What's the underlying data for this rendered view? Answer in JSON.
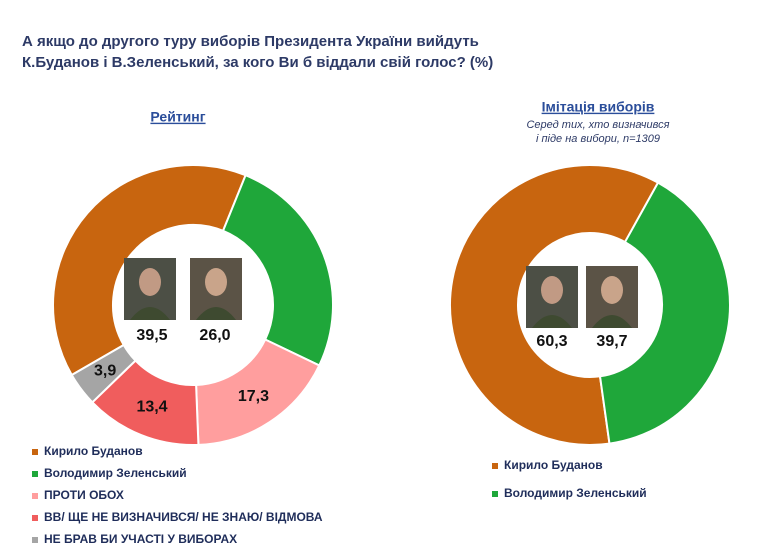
{
  "title": [
    "А якщо до другого туру виборів Президента України вийдуть",
    "К.Буданов і В.Зеленський, за кого Ви б віддали свій голос? (%)"
  ],
  "chart_data": [
    {
      "type": "donut",
      "title": "Рейтинг",
      "categories": [
        "Кирило Буданов",
        "Володимир Зеленський",
        "ПРОТИ ОБОХ",
        "ВВ/ ЩЕ НЕ ВИЗНАЧИВСЯ/ НЕ ЗНАЮ/ ВІДМОВА",
        "НЕ БРАВ БИ УЧАСТІ У ВИБОРАХ"
      ],
      "values": [
        39.5,
        26.0,
        17.3,
        13.4,
        3.9
      ],
      "value_labels": [
        "39,5",
        "26,0",
        "17,3",
        "13,4",
        "3,9"
      ],
      "colors": [
        "#c8650f",
        "#1fa73a",
        "#ff9e9e",
        "#f05d5d",
        "#a5a5a5"
      ]
    },
    {
      "type": "donut",
      "title": "Імітація виборів",
      "subtitle": [
        "Серед тих, хто визначився",
        "і піде на вибори, n=1309"
      ],
      "categories": [
        "Кирило Буданов",
        "Володимир Зеленський"
      ],
      "values": [
        60.3,
        39.7
      ],
      "value_labels": [
        "60,3",
        "39,7"
      ],
      "colors": [
        "#c8650f",
        "#1fa73a"
      ]
    }
  ]
}
